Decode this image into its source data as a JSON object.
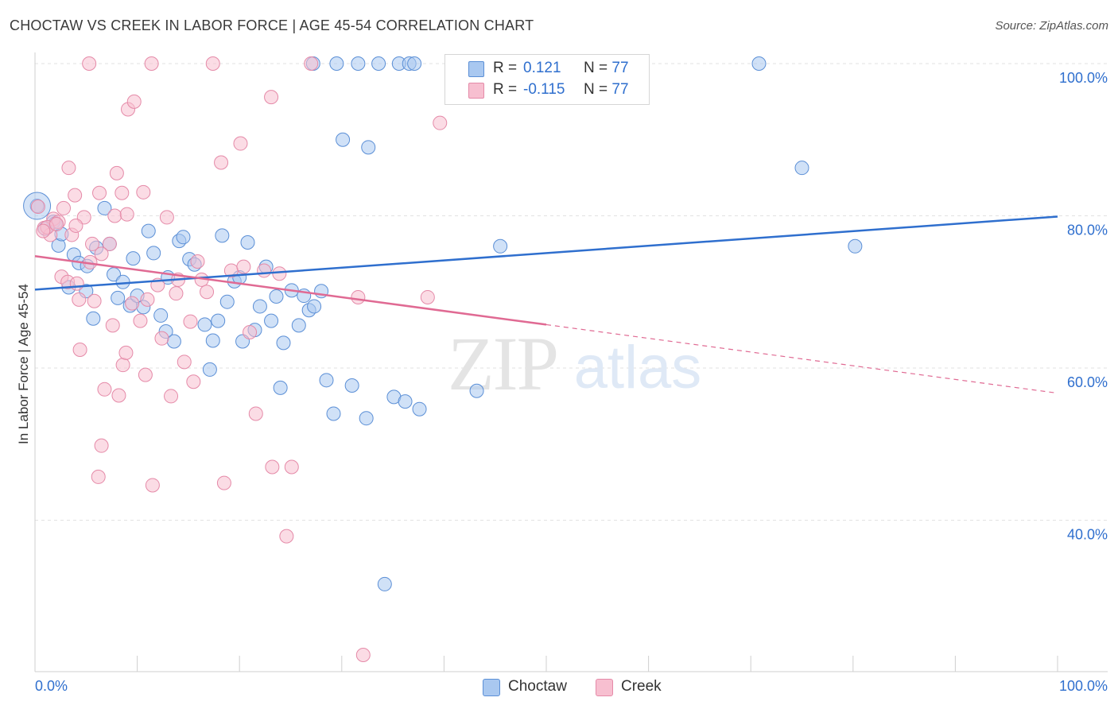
{
  "title": "CHOCTAW VS CREEK IN LABOR FORCE | AGE 45-54 CORRELATION CHART",
  "source": "Source: ZipAtlas.com",
  "watermark": {
    "zip": "ZIP",
    "atlas": "atlas"
  },
  "legend": {
    "rows": [
      {
        "r_label": "R =",
        "r_value": "0.121",
        "n_label": "N =",
        "n_value": "77"
      },
      {
        "r_label": "R =",
        "r_value": "-0.115",
        "n_label": "N =",
        "n_value": "77"
      }
    ]
  },
  "bottom_legend": [
    "Choctaw",
    "Creek"
  ],
  "colors": {
    "choctaw_fill": "#a9c8f0",
    "choctaw_stroke": "#5b8fd6",
    "choctaw_line": "#2f6fce",
    "creek_fill": "#f7bfd0",
    "creek_stroke": "#e58aa8",
    "creek_line": "#e06a93",
    "tick_text": "#2f6fce",
    "grid": "#e2e2e2"
  },
  "chart_data": {
    "type": "scatter",
    "title": "CHOCTAW VS CREEK IN LABOR FORCE | AGE 45-54 CORRELATION CHART",
    "xlabel": "",
    "ylabel": "In Labor Force | Age 45-54",
    "xlim": [
      0,
      100
    ],
    "ylim": [
      20,
      102
    ],
    "x_tick_labels": [
      "0.0%",
      "100.0%"
    ],
    "y_ticks": [
      40,
      60,
      80,
      100
    ],
    "y_tick_labels": [
      "40.0%",
      "60.0%",
      "80.0%",
      "100.0%"
    ],
    "grid": true,
    "series": [
      {
        "name": "Choctaw",
        "r": 0.121,
        "n": 77,
        "trend": {
          "x": [
            0,
            100
          ],
          "y": [
            70.3,
            79.9
          ],
          "dashed_from": null
        },
        "points": [
          [
            0.2,
            81.3
          ],
          [
            1.8,
            79.2
          ],
          [
            2.3,
            76.1
          ],
          [
            2.6,
            77.6
          ],
          [
            3.8,
            74.9
          ],
          [
            4.3,
            73.8
          ],
          [
            5,
            70.1
          ],
          [
            5.1,
            73.4
          ],
          [
            5.7,
            66.5
          ],
          [
            6.8,
            81.0
          ],
          [
            7.3,
            76.3
          ],
          [
            7.7,
            72.3
          ],
          [
            8.1,
            69.2
          ],
          [
            8.6,
            71.3
          ],
          [
            9.3,
            68.2
          ],
          [
            9.6,
            74.4
          ],
          [
            10.0,
            69.5
          ],
          [
            10.6,
            68.0
          ],
          [
            11.1,
            78.0
          ],
          [
            11.6,
            75.1
          ],
          [
            12.3,
            66.9
          ],
          [
            12.8,
            64.8
          ],
          [
            13.0,
            71.9
          ],
          [
            13.6,
            63.5
          ],
          [
            14.1,
            76.7
          ],
          [
            14.5,
            77.2
          ],
          [
            15.1,
            74.3
          ],
          [
            15.6,
            73.6
          ],
          [
            16.6,
            65.7
          ],
          [
            17.1,
            59.8
          ],
          [
            17.4,
            63.6
          ],
          [
            17.9,
            66.2
          ],
          [
            18.3,
            77.4
          ],
          [
            18.8,
            68.7
          ],
          [
            19.5,
            71.4
          ],
          [
            20.0,
            71.9
          ],
          [
            20.3,
            63.5
          ],
          [
            20.8,
            76.5
          ],
          [
            21.5,
            65.0
          ],
          [
            22.0,
            68.1
          ],
          [
            22.6,
            73.3
          ],
          [
            23.1,
            66.2
          ],
          [
            23.6,
            69.4
          ],
          [
            24.0,
            57.4
          ],
          [
            24.3,
            63.3
          ],
          [
            25.1,
            70.2
          ],
          [
            25.8,
            65.6
          ],
          [
            26.3,
            69.5
          ],
          [
            26.8,
            67.6
          ],
          [
            27.3,
            68.1
          ],
          [
            28.0,
            70.1
          ],
          [
            27.2,
            100
          ],
          [
            28.5,
            58.4
          ],
          [
            29.2,
            54.0
          ],
          [
            29.5,
            100
          ],
          [
            30.1,
            90.0
          ],
          [
            31.0,
            57.7
          ],
          [
            31.6,
            100
          ],
          [
            32.4,
            53.4
          ],
          [
            32.6,
            89.0
          ],
          [
            33.6,
            100
          ],
          [
            35.6,
            100
          ],
          [
            34.2,
            31.6
          ],
          [
            35.1,
            56.2
          ],
          [
            36.2,
            55.6
          ],
          [
            36.6,
            100
          ],
          [
            37.6,
            54.6
          ],
          [
            37.1,
            100
          ],
          [
            43.2,
            57.0
          ],
          [
            45.5,
            76.0
          ],
          [
            70.8,
            100
          ],
          [
            75.0,
            86.3
          ],
          [
            80.2,
            76.0
          ],
          [
            1.0,
            78.3
          ],
          [
            2.0,
            79.0
          ],
          [
            3.3,
            70.6
          ],
          [
            6.0,
            75.8
          ]
        ]
      },
      {
        "name": "Creek",
        "r": -0.115,
        "n": 77,
        "trend": {
          "x": [
            0,
            100
          ],
          "y": [
            74.7,
            56.7
          ],
          "dashed_from": 50
        },
        "points": [
          [
            0.3,
            81.2
          ],
          [
            0.9,
            78.4
          ],
          [
            1.5,
            77.5
          ],
          [
            1.8,
            79.6
          ],
          [
            2.3,
            79.2
          ],
          [
            2.6,
            72.0
          ],
          [
            2.8,
            81.0
          ],
          [
            3.2,
            71.3
          ],
          [
            3.6,
            77.5
          ],
          [
            3.3,
            86.3
          ],
          [
            3.9,
            82.7
          ],
          [
            4.1,
            71.1
          ],
          [
            4.3,
            69.0
          ],
          [
            4.4,
            62.4
          ],
          [
            4.8,
            79.8
          ],
          [
            5.4,
            73.9
          ],
          [
            5.6,
            76.3
          ],
          [
            5.8,
            68.8
          ],
          [
            6.2,
            45.7
          ],
          [
            6.5,
            49.8
          ],
          [
            6.3,
            83.0
          ],
          [
            6.8,
            57.2
          ],
          [
            7.3,
            76.3
          ],
          [
            7.6,
            65.6
          ],
          [
            7.8,
            80.0
          ],
          [
            8.0,
            85.6
          ],
          [
            8.2,
            56.4
          ],
          [
            8.5,
            83.0
          ],
          [
            8.6,
            60.4
          ],
          [
            8.9,
            62.0
          ],
          [
            9.0,
            80.2
          ],
          [
            9.1,
            94.0
          ],
          [
            9.7,
            95.0
          ],
          [
            10.3,
            66.2
          ],
          [
            10.6,
            83.1
          ],
          [
            10.8,
            59.1
          ],
          [
            11.0,
            69.0
          ],
          [
            11.5,
            44.6
          ],
          [
            12.4,
            63.9
          ],
          [
            12.9,
            79.8
          ],
          [
            13.3,
            56.3
          ],
          [
            13.8,
            69.8
          ],
          [
            14.0,
            71.6
          ],
          [
            14.6,
            60.8
          ],
          [
            15.2,
            66.1
          ],
          [
            15.5,
            58.2
          ],
          [
            15.9,
            74.0
          ],
          [
            16.3,
            71.6
          ],
          [
            18.2,
            87.0
          ],
          [
            18.5,
            44.9
          ],
          [
            19.2,
            72.8
          ],
          [
            20.1,
            89.5
          ],
          [
            21.0,
            64.7
          ],
          [
            21.6,
            54.0
          ],
          [
            23.2,
            47.0
          ],
          [
            23.1,
            95.6
          ],
          [
            23.9,
            72.4
          ],
          [
            24.6,
            37.9
          ],
          [
            25.1,
            47.0
          ],
          [
            31.6,
            69.3
          ],
          [
            32.1,
            22.3
          ],
          [
            38.4,
            69.3
          ],
          [
            39.6,
            92.2
          ],
          [
            5.3,
            100
          ],
          [
            11.4,
            100
          ],
          [
            17.4,
            100
          ],
          [
            27.0,
            100
          ],
          [
            1.2,
            78.5
          ],
          [
            0.8,
            78.0
          ],
          [
            2.1,
            78.9
          ],
          [
            4.0,
            78.7
          ],
          [
            6.5,
            75.0
          ],
          [
            9.5,
            68.5
          ],
          [
            12.0,
            70.9
          ],
          [
            16.8,
            70.0
          ],
          [
            20.4,
            73.3
          ],
          [
            22.4,
            72.8
          ]
        ]
      }
    ]
  }
}
